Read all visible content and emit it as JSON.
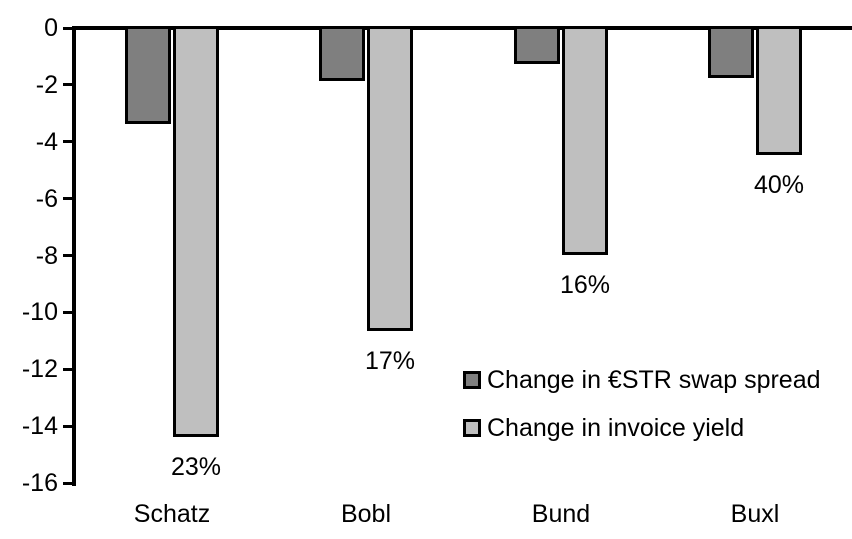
{
  "chart_data": {
    "type": "bar",
    "orientation": "vertical",
    "title": "",
    "xlabel": "",
    "ylabel": "",
    "categories": [
      "Schatz",
      "Bobl",
      "Bund",
      "Buxl"
    ],
    "series": [
      {
        "name": "Change in €STR swap spread",
        "color": "#7f7f7f",
        "values": [
          -3.3,
          -1.8,
          -1.2,
          -1.7
        ]
      },
      {
        "name": "Change in invoice yield",
        "color": "#bfbfbf",
        "values": [
          -14.3,
          -10.6,
          -7.9,
          -4.4
        ],
        "value_labels": [
          "23%",
          "17%",
          "16%",
          "40%"
        ]
      }
    ],
    "ylim": [
      -16,
      0
    ],
    "yticks": [
      "0",
      "-2",
      "-4",
      "-6",
      "-8",
      "-10",
      "-12",
      "-14",
      "-16"
    ],
    "grid": false,
    "legend_position": "inside-center-right",
    "axis_color": "#000000",
    "bar_border_color": "#000000",
    "text_color": "#000000",
    "background_color": "#ffffff"
  }
}
